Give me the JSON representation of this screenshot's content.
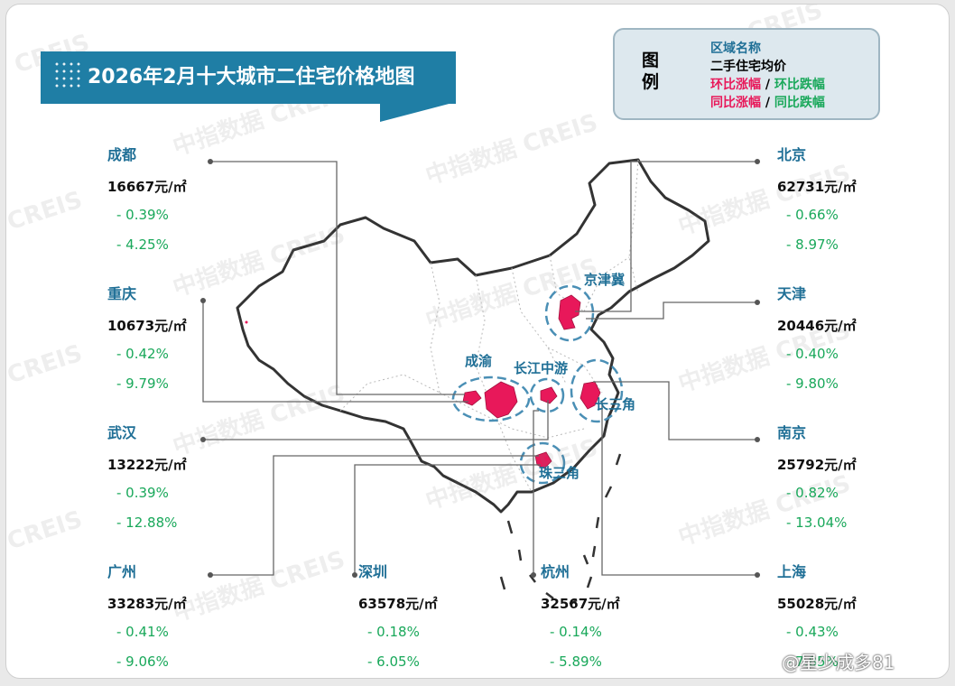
{
  "title": "2026年2月十大城市二住宅价格地图",
  "legend": {
    "heading": "图例",
    "line1": "区域名称",
    "line2": "二手住宅均价",
    "line3_up": "环比涨幅",
    "line3_sep": " / ",
    "line3_down": "环比跌幅",
    "line4_up": "同比涨幅",
    "line4_sep": " / ",
    "line4_down": "同比跌幅",
    "colors": {
      "up": "#e8185a",
      "down": "#19a85a",
      "name": "#1f6f96"
    }
  },
  "watermark": {
    "cn": "中指数据",
    "en": "CREIS"
  },
  "cities": {
    "chengdu": {
      "name": "成都",
      "price": "16667元/㎡",
      "mom": "- 0.39%",
      "yoy": "- 4.25%"
    },
    "chongqing": {
      "name": "重庆",
      "price": "10673元/㎡",
      "mom": "- 0.42%",
      "yoy": "- 9.79%"
    },
    "wuhan": {
      "name": "武汉",
      "price": "13222元/㎡",
      "mom": "- 0.39%",
      "yoy": "- 12.88%"
    },
    "guangzhou": {
      "name": "广州",
      "price": "33283元/㎡",
      "mom": "- 0.41%",
      "yoy": "- 9.06%"
    },
    "shenzhen": {
      "name": "深圳",
      "price": "63578元/㎡",
      "mom": "- 0.18%",
      "yoy": "- 6.05%"
    },
    "hangzhou": {
      "name": "杭州",
      "price": "32567元/㎡",
      "mom": "- 0.14%",
      "yoy": "- 5.89%"
    },
    "beijing": {
      "name": "北京",
      "price": "62731元/㎡",
      "mom": "- 0.66%",
      "yoy": "- 8.97%"
    },
    "tianjin": {
      "name": "天津",
      "price": "20446元/㎡",
      "mom": "- 0.40%",
      "yoy": "- 9.80%"
    },
    "nanjing": {
      "name": "南京",
      "price": "25792元/㎡",
      "mom": "- 0.82%",
      "yoy": "- 13.04%"
    },
    "shanghai": {
      "name": "上海",
      "price": "55028元/㎡",
      "mom": "- 0.43%",
      "yoy": "- 7.85%"
    }
  },
  "regions": {
    "jingjinji": "京津冀",
    "chengyu": "成渝",
    "changjiang": "长江中游",
    "changsanjiao": "长三角",
    "zhusanjiao": "珠三角"
  },
  "weibo": "@星少成多81"
}
